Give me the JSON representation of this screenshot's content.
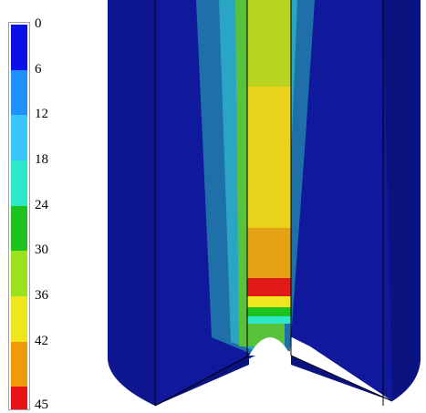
{
  "legend": {
    "ticks": [
      "0",
      "6",
      "12",
      "18",
      "24",
      "30",
      "36",
      "42",
      "45"
    ],
    "colors": [
      "#0a10e6",
      "#1e90ff",
      "#39c6ff",
      "#2ee6c8",
      "#1ec21e",
      "#9ae11e",
      "#f0e61e",
      "#f09a0a",
      "#e61414"
    ]
  },
  "colors": {
    "outer_blue": "#10189c",
    "outer_blue_dark": "#0b1380",
    "teal": "#1f6fa8",
    "light_teal": "#2aa6c4",
    "green_band": "#58c23a",
    "yellow": "#e9d21a",
    "orange": "#e5a214",
    "red": "#e21919"
  }
}
